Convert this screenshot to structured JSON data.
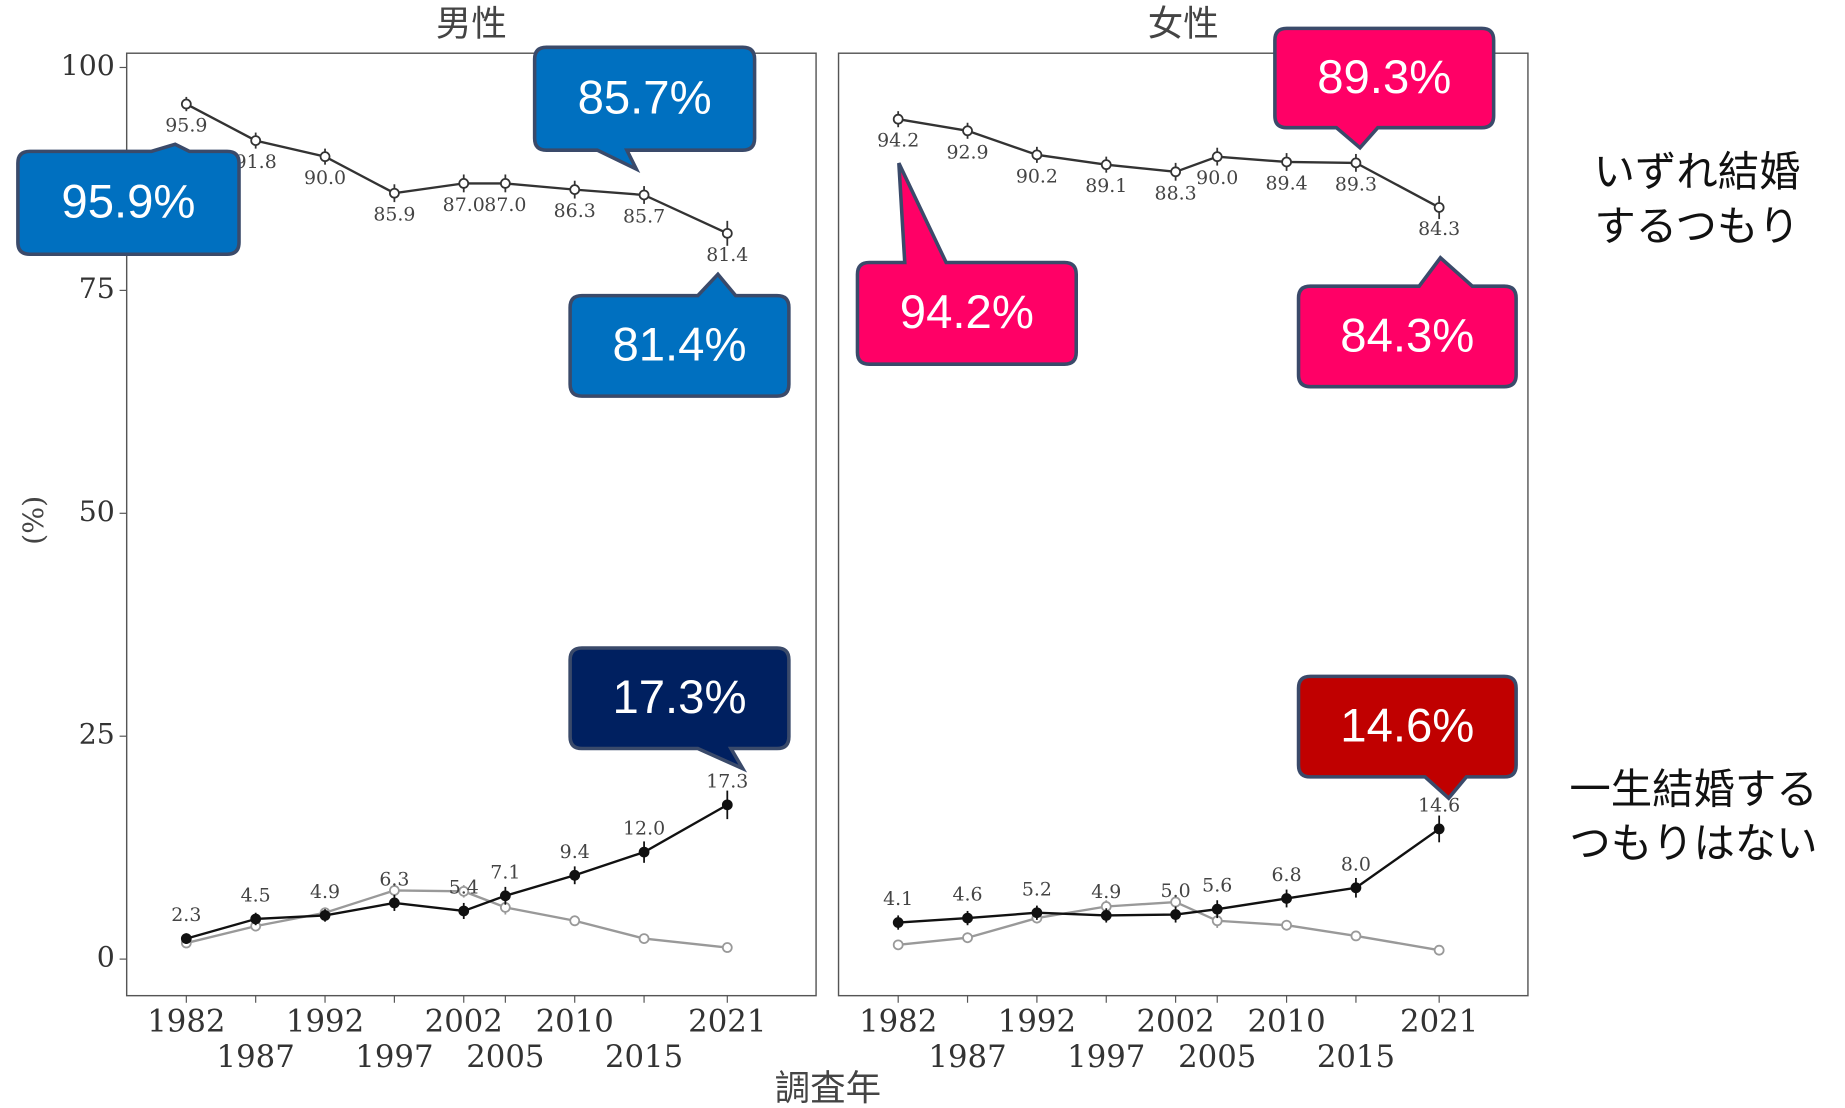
{
  "chart_data": [
    {
      "type": "line",
      "title": "男性",
      "x": [
        1982,
        1987,
        1992,
        1997,
        2002,
        2005,
        2010,
        2015,
        2021
      ],
      "xlim": [
        1977.7,
        2027.4
      ],
      "xticks": [
        1982,
        1987,
        1992,
        1997,
        2002,
        2005,
        2010,
        2015,
        2021
      ],
      "ylim": [
        -4.1,
        101.6
      ],
      "yticks": [
        0,
        25,
        50,
        75,
        100
      ],
      "series": [
        {
          "color": "#333333",
          "marker": "open",
          "values": [
            95.9,
            91.8,
            90.0,
            85.9,
            87.0,
            87.0,
            86.3,
            85.7,
            81.4
          ],
          "value_labels": [
            "95.9",
            "91.8",
            "90.0",
            "85.9",
            "87.0",
            "87.0",
            "86.3",
            "85.7",
            "81.4"
          ],
          "errors": [
            0.8,
            0.9,
            0.9,
            1.0,
            1.0,
            1.0,
            1.0,
            1.0,
            1.4
          ]
        },
        {
          "color": "#999999",
          "marker": "open",
          "values": [
            1.8,
            3.7,
            5.2,
            7.7,
            7.6,
            5.8,
            4.3,
            2.3,
            1.3
          ],
          "errors": [
            0.5,
            0.6,
            0.6,
            0.7,
            0.7,
            0.8,
            0.6,
            0.5,
            0.5
          ]
        },
        {
          "color": "#111111",
          "marker": "filled",
          "values": [
            2.3,
            4.5,
            4.9,
            6.3,
            5.4,
            7.1,
            9.4,
            12.0,
            17.3
          ],
          "value_labels": [
            "2.3",
            "4.5",
            "4.9",
            "6.3",
            "5.4",
            "7.1",
            "9.4",
            "12.0",
            "17.3"
          ],
          "errors": [
            0.6,
            0.7,
            0.7,
            0.9,
            0.9,
            1.0,
            1.0,
            1.2,
            1.6
          ]
        }
      ],
      "callouts": [
        {
          "value": 95.9,
          "label": "95.9%",
          "color": "#0070c0"
        },
        {
          "value": 85.7,
          "label": "85.7%",
          "color": "#0070c0"
        },
        {
          "value": 81.4,
          "label": "81.4%",
          "color": "#0070c0"
        },
        {
          "value": 17.3,
          "label": "17.3%",
          "color": "#002060"
        }
      ]
    },
    {
      "type": "line",
      "title": "女性",
      "x": [
        1982,
        1987,
        1992,
        1997,
        2002,
        2005,
        2010,
        2015,
        2021
      ],
      "xlim": [
        1977.7,
        2027.4
      ],
      "xticks": [
        1982,
        1987,
        1992,
        1997,
        2002,
        2005,
        2010,
        2015,
        2021
      ],
      "ylim": [
        -4.1,
        101.6
      ],
      "yticks": [
        0,
        25,
        50,
        75,
        100
      ],
      "series": [
        {
          "color": "#333333",
          "marker": "open",
          "values": [
            94.2,
            92.9,
            90.2,
            89.1,
            88.3,
            90.0,
            89.4,
            89.3,
            84.3
          ],
          "value_labels": [
            "94.2",
            "92.9",
            "90.2",
            "89.1",
            "88.3",
            "90.0",
            "89.4",
            "89.3",
            "84.3"
          ],
          "errors": [
            0.9,
            0.9,
            0.9,
            0.9,
            1.0,
            1.0,
            1.0,
            1.0,
            1.3
          ]
        },
        {
          "color": "#999999",
          "marker": "open",
          "values": [
            1.6,
            2.4,
            4.6,
            5.9,
            6.4,
            4.3,
            3.8,
            2.6,
            1.0
          ],
          "errors": [
            0.5,
            0.6,
            0.6,
            0.7,
            0.7,
            0.8,
            0.6,
            0.5,
            0.4
          ]
        },
        {
          "color": "#111111",
          "marker": "filled",
          "values": [
            4.1,
            4.6,
            5.2,
            4.9,
            5.0,
            5.6,
            6.8,
            8.0,
            14.6
          ],
          "value_labels": [
            "4.1",
            "4.6",
            "5.2",
            "4.9",
            "5.0",
            "5.6",
            "6.8",
            "8.0",
            "14.6"
          ],
          "errors": [
            0.8,
            0.8,
            0.8,
            0.8,
            0.9,
            1.0,
            1.0,
            1.1,
            1.5
          ]
        }
      ],
      "callouts": [
        {
          "value": 89.3,
          "label": "89.3%",
          "color": "#ff0066"
        },
        {
          "value": 94.2,
          "label": "94.2%",
          "color": "#ff0066"
        },
        {
          "value": 84.3,
          "label": "84.3%",
          "color": "#ff0066"
        },
        {
          "value": 14.6,
          "label": "14.6%",
          "color": "#c00000"
        }
      ]
    }
  ],
  "ylabel": "(%)",
  "xlabel": "調査年",
  "series_labels": [
    [
      "いずれ結婚",
      "するつもり"
    ],
    [
      "一生結婚する",
      "つもりはない"
    ]
  ]
}
